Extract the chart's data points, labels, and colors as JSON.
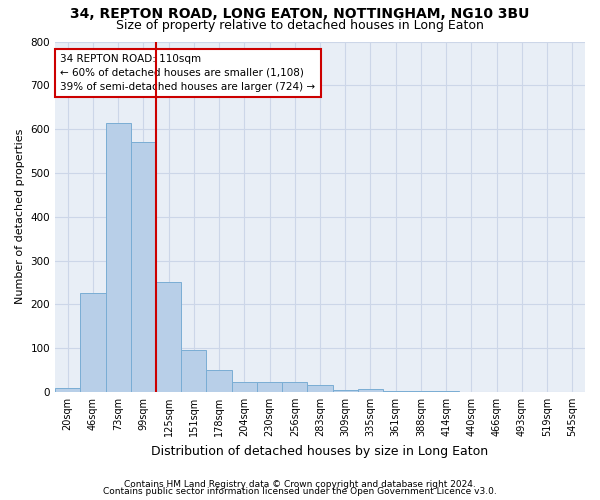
{
  "title": "34, REPTON ROAD, LONG EATON, NOTTINGHAM, NG10 3BU",
  "subtitle": "Size of property relative to detached houses in Long Eaton",
  "xlabel": "Distribution of detached houses by size in Long Eaton",
  "ylabel": "Number of detached properties",
  "footer1": "Contains HM Land Registry data © Crown copyright and database right 2024.",
  "footer2": "Contains public sector information licensed under the Open Government Licence v3.0.",
  "bin_labels": [
    "20sqm",
    "46sqm",
    "73sqm",
    "99sqm",
    "125sqm",
    "151sqm",
    "178sqm",
    "204sqm",
    "230sqm",
    "256sqm",
    "283sqm",
    "309sqm",
    "335sqm",
    "361sqm",
    "388sqm",
    "414sqm",
    "440sqm",
    "466sqm",
    "493sqm",
    "519sqm",
    "545sqm"
  ],
  "bar_heights": [
    10,
    225,
    615,
    570,
    250,
    95,
    50,
    22,
    22,
    22,
    15,
    5,
    7,
    1,
    1,
    1,
    0,
    0,
    0,
    0,
    0
  ],
  "bar_color": "#b8cfe8",
  "bar_edge_color": "#7aadd4",
  "grid_color": "#ccd6e8",
  "background_color": "#e8eef6",
  "red_line_x": 3.5,
  "annotation_text": "34 REPTON ROAD: 110sqm\n← 60% of detached houses are smaller (1,108)\n39% of semi-detached houses are larger (724) →",
  "annotation_box_color": "#ffffff",
  "annotation_border_color": "#cc0000",
  "ylim": [
    0,
    800
  ],
  "yticks": [
    0,
    100,
    200,
    300,
    400,
    500,
    600,
    700,
    800
  ],
  "title_fontsize": 10,
  "subtitle_fontsize": 9,
  "ylabel_fontsize": 8,
  "xlabel_fontsize": 9,
  "tick_fontsize": 7,
  "annotation_fontsize": 7.5,
  "footer_fontsize": 6.5
}
